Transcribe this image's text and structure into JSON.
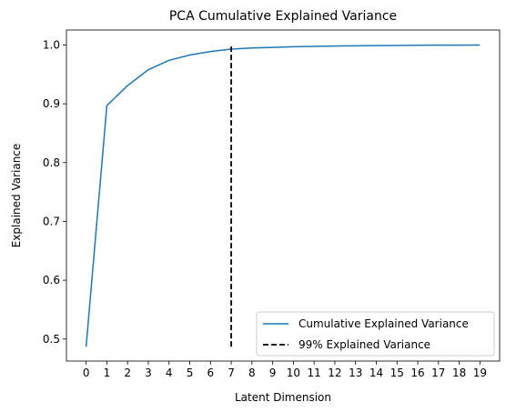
{
  "chart_data": {
    "type": "line",
    "title": "PCA Cumulative Explained Variance",
    "xlabel": "Latent Dimension",
    "ylabel": "Explained Variance",
    "xlim": [
      -0.95,
      19.95
    ],
    "ylim": [
      0.4625,
      1.0255
    ],
    "xticks": [
      0,
      1,
      2,
      3,
      4,
      5,
      6,
      7,
      8,
      9,
      10,
      11,
      12,
      13,
      14,
      15,
      16,
      17,
      18,
      19
    ],
    "yticks": [
      0.5,
      0.6,
      0.7,
      0.8,
      0.9,
      1.0
    ],
    "ytick_labels": [
      "0.5",
      "0.6",
      "0.7",
      "0.8",
      "0.9",
      "1.0"
    ],
    "grid": false,
    "legend_position": "lower-right",
    "series": [
      {
        "name": "Cumulative Explained Variance",
        "color": "#1f77b4",
        "style": "solid",
        "x": [
          0,
          1,
          2,
          3,
          4,
          5,
          6,
          7,
          8,
          9,
          10,
          11,
          12,
          13,
          14,
          15,
          16,
          17,
          18,
          19
        ],
        "values": [
          0.487,
          0.897,
          0.931,
          0.958,
          0.974,
          0.983,
          0.989,
          0.993,
          0.995,
          0.996,
          0.997,
          0.9977,
          0.9983,
          0.9987,
          0.999,
          0.9993,
          0.9995,
          0.9997,
          0.9998,
          1.0
        ]
      },
      {
        "name": "99% Explained Variance",
        "color": "#000000",
        "style": "dashed",
        "x": [
          7,
          7
        ],
        "values": [
          0.487,
          1.0
        ]
      }
    ]
  }
}
